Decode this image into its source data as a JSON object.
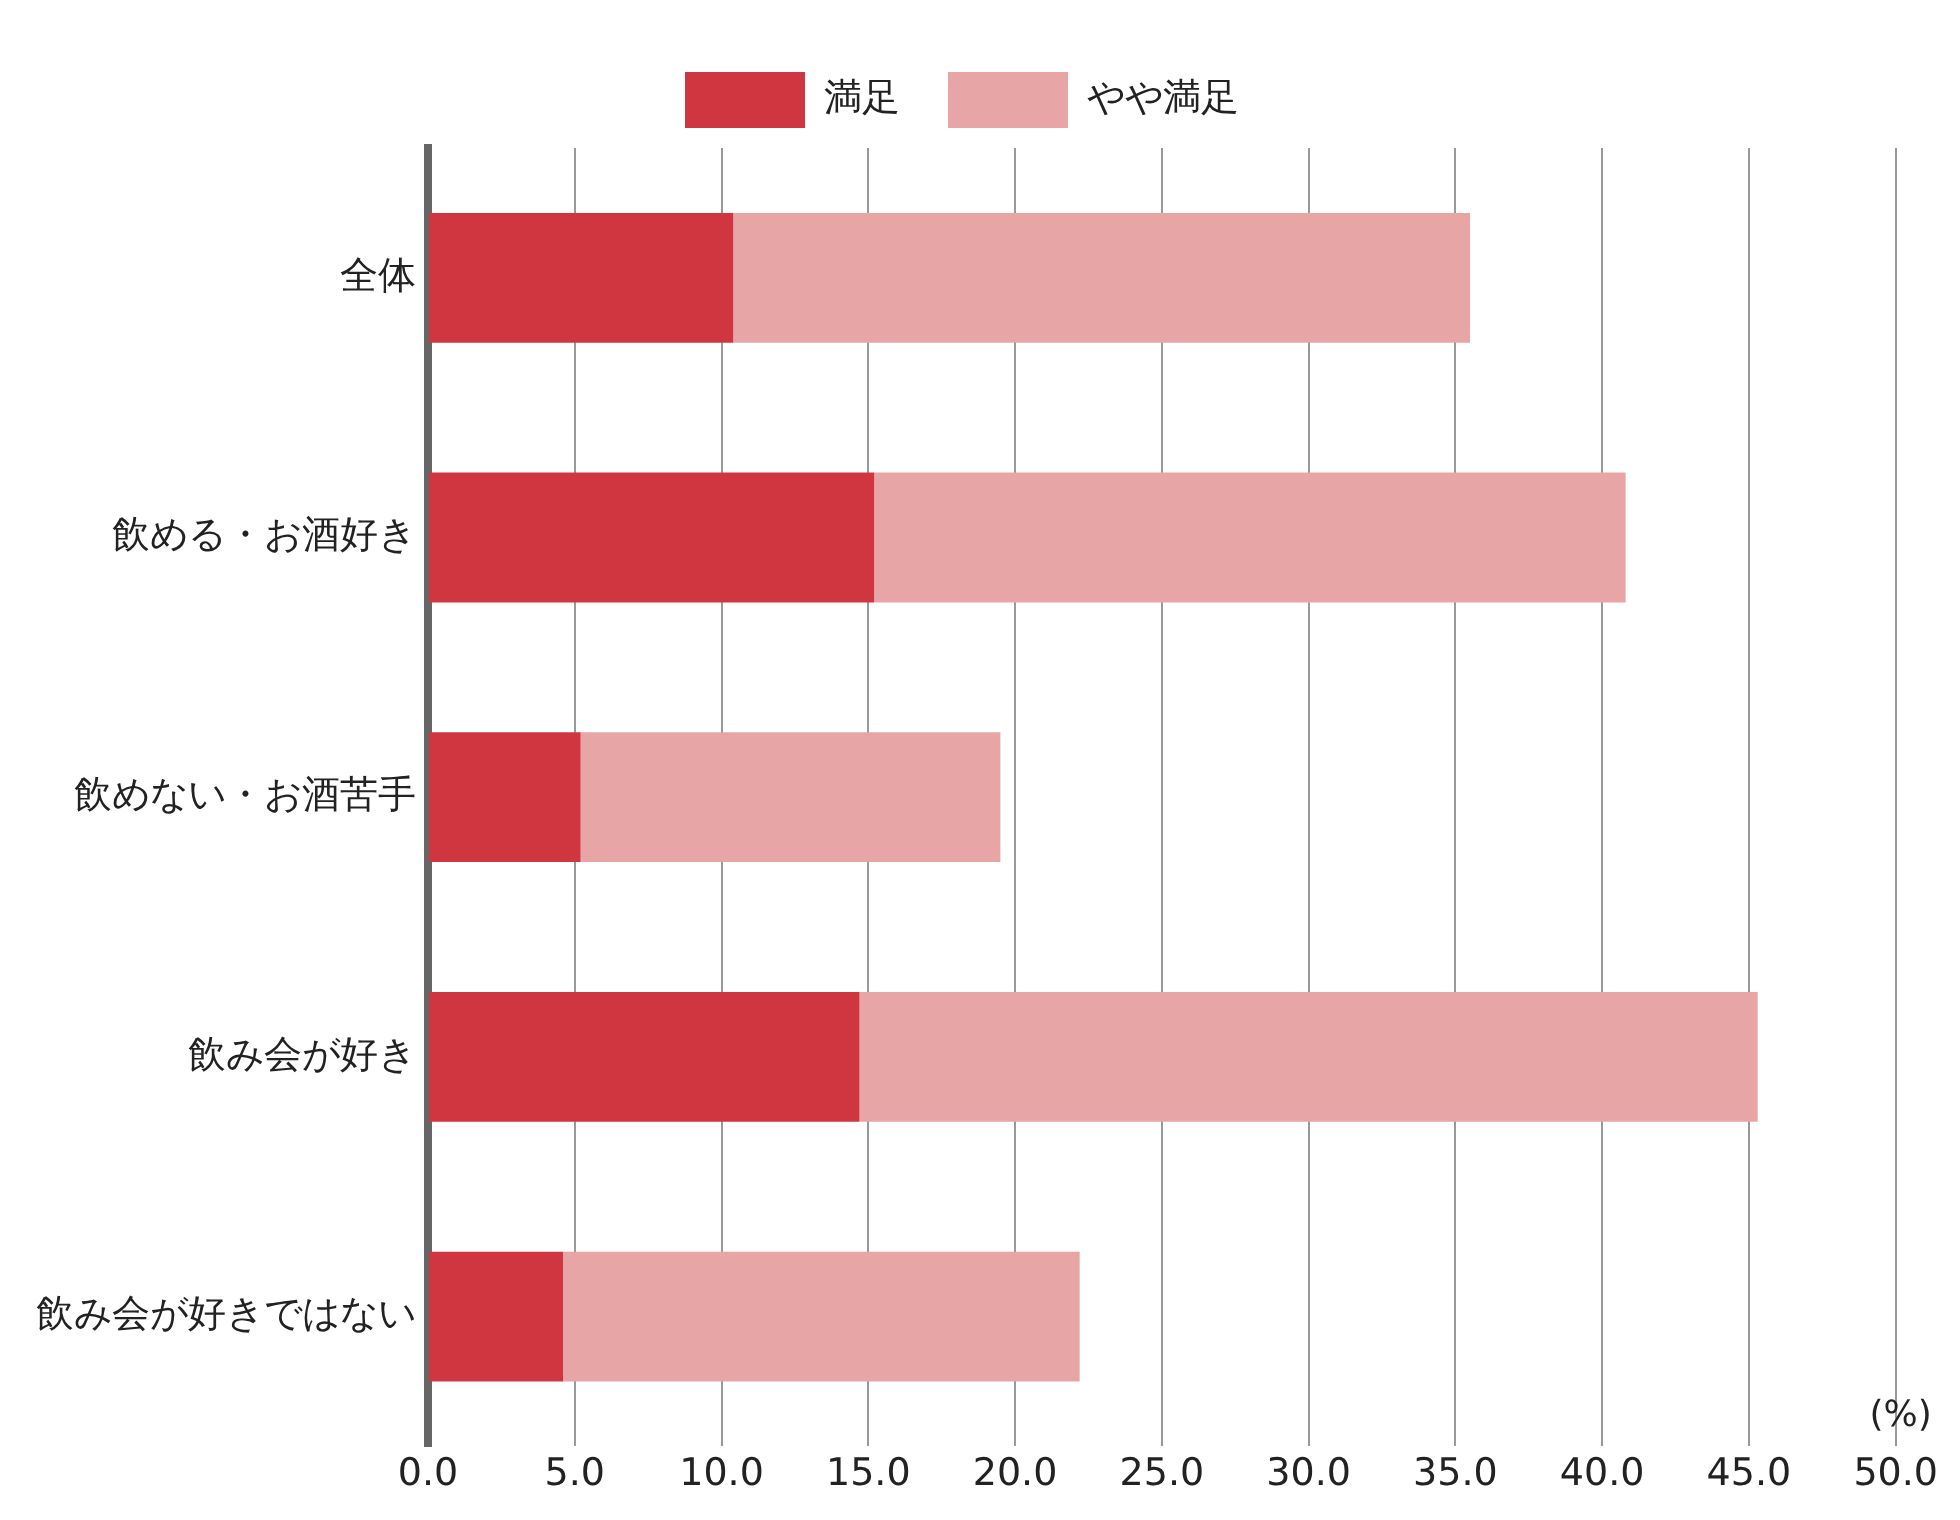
{
  "chart_data": {
    "type": "bar",
    "orientation": "horizontal",
    "stacked": true,
    "categories": [
      "全体",
      "飲める・お酒好き",
      "飲めない・お酒苦手",
      "飲み会が好き",
      "飲み会が好きではない"
    ],
    "series": [
      {
        "name": "満足",
        "color": "#cf3640",
        "values": [
          10.4,
          15.2,
          5.2,
          14.7,
          4.6
        ]
      },
      {
        "name": "やや満足",
        "color": "#e8a5a5",
        "values": [
          25.1,
          25.6,
          14.3,
          30.6,
          17.6
        ]
      }
    ],
    "xlim": [
      0,
      50
    ],
    "xticks": [
      {
        "value": 0,
        "label": "0.0"
      },
      {
        "value": 5,
        "label": "5.0"
      },
      {
        "value": 10,
        "label": "10.0"
      },
      {
        "value": 15,
        "label": "15.0"
      },
      {
        "value": 20,
        "label": "20.0"
      },
      {
        "value": 25,
        "label": "25.0"
      },
      {
        "value": 30,
        "label": "30.0"
      },
      {
        "value": 35,
        "label": "35.0"
      },
      {
        "value": 40,
        "label": "40.0"
      },
      {
        "value": 45,
        "label": "45.0"
      },
      {
        "value": 50,
        "label": "50.0"
      }
    ],
    "grid": "x",
    "legend": "top",
    "annotations": [
      "(%)"
    ]
  }
}
